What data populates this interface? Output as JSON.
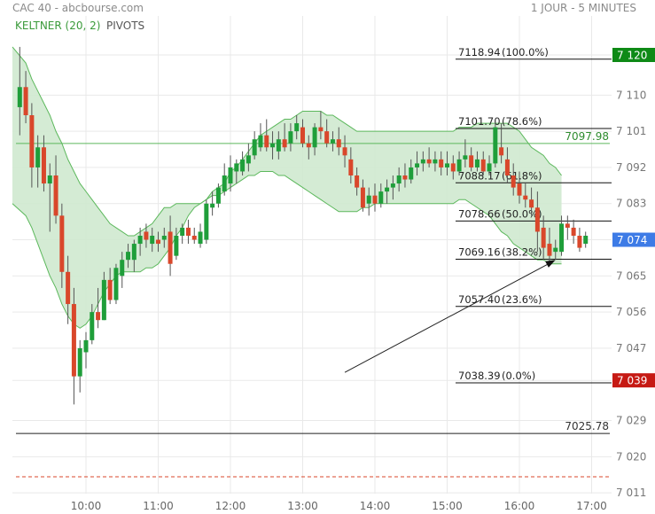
{
  "header": {
    "title": "CAC 40 - abcbourse.com",
    "period": "1 JOUR - 5 MINUTES"
  },
  "legend": {
    "keltner": "KELTNER (20, 2)",
    "pivots": "PIVOTS"
  },
  "colors": {
    "up": "#1f9e3a",
    "down": "#d9472b",
    "band_fill": "#cfe9cf",
    "band_line": "#5cb85c",
    "grid": "#e9e9e9",
    "label_green": "#0e8a16",
    "label_blue": "#3d7be6",
    "label_red": "#c61a14"
  },
  "chart_data": {
    "type": "candlestick",
    "title": "CAC 40",
    "x_ticks": [
      "10:00",
      "11:00",
      "12:00",
      "13:00",
      "14:00",
      "15:00",
      "16:00",
      "17:00"
    ],
    "y_ticks": [
      "7 120",
      "7 110",
      "7 101",
      "7 092",
      "7 083",
      "7 074",
      "7 065",
      "7 056",
      "7 047",
      "7 039",
      "7 029",
      "7 020",
      "7 011"
    ],
    "ylim": [
      7009,
      7125
    ],
    "price_labels": [
      {
        "text": "7 120",
        "value": 7120,
        "color": "#0e8a16"
      },
      {
        "text": "7 074",
        "value": 7074,
        "color": "#3d7be6"
      },
      {
        "text": "7 039",
        "value": 7039,
        "color": "#c61a14"
      }
    ],
    "fibonacci": [
      {
        "label": "7118.94",
        "pct": "(100.0%)",
        "value": 7118.94
      },
      {
        "label": "7101.70",
        "pct": "(78.6%)",
        "value": 7101.7
      },
      {
        "label": "7088.17",
        "pct": "(61.8%)",
        "value": 7088.17
      },
      {
        "label": "7078.66",
        "pct": "(50.0%)",
        "value": 7078.66
      },
      {
        "label": "7069.16",
        "pct": "(38.2%)",
        "value": 7069.16
      },
      {
        "label": "7057.40",
        "pct": "(23.6%)",
        "value": 7057.4
      },
      {
        "label": "7038.39",
        "pct": "(0.0%)",
        "value": 7038.39
      }
    ],
    "levels": [
      {
        "label": "7097.98",
        "value": 7097.98,
        "color": "#5cb85c"
      },
      {
        "label": "7025.78",
        "value": 7025.78,
        "color": "#222222"
      },
      {
        "label": "",
        "value": 7015,
        "color": "#d9472b",
        "style": "dashed"
      }
    ],
    "candles": [
      {
        "t": "09:05",
        "o": 7107,
        "h": 7122,
        "l": 7100,
        "c": 7112
      },
      {
        "t": "09:10",
        "o": 7112,
        "h": 7116,
        "l": 7103,
        "c": 7105
      },
      {
        "t": "09:15",
        "o": 7105,
        "h": 7108,
        "l": 7087,
        "c": 7092
      },
      {
        "t": "09:20",
        "o": 7092,
        "h": 7100,
        "l": 7087,
        "c": 7097
      },
      {
        "t": "09:25",
        "o": 7097,
        "h": 7100,
        "l": 7086,
        "c": 7088
      },
      {
        "t": "09:30",
        "o": 7088,
        "h": 7093,
        "l": 7076,
        "c": 7090
      },
      {
        "t": "09:35",
        "o": 7090,
        "h": 7095,
        "l": 7078,
        "c": 7080
      },
      {
        "t": "09:40",
        "o": 7080,
        "h": 7083,
        "l": 7062,
        "c": 7066
      },
      {
        "t": "09:45",
        "o": 7066,
        "h": 7070,
        "l": 7053,
        "c": 7058
      },
      {
        "t": "09:50",
        "o": 7058,
        "h": 7062,
        "l": 7033,
        "c": 7040
      },
      {
        "t": "09:55",
        "o": 7040,
        "h": 7049,
        "l": 7036,
        "c": 7047
      },
      {
        "t": "10:00",
        "o": 7046,
        "h": 7051,
        "l": 7042,
        "c": 7049
      },
      {
        "t": "10:05",
        "o": 7049,
        "h": 7058,
        "l": 7048,
        "c": 7056
      },
      {
        "t": "10:10",
        "o": 7056,
        "h": 7062,
        "l": 7052,
        "c": 7054
      },
      {
        "t": "10:15",
        "o": 7054,
        "h": 7066,
        "l": 7054,
        "c": 7064
      },
      {
        "t": "10:20",
        "o": 7064,
        "h": 7067,
        "l": 7058,
        "c": 7059
      },
      {
        "t": "10:25",
        "o": 7059,
        "h": 7068,
        "l": 7058,
        "c": 7067
      },
      {
        "t": "10:30",
        "o": 7065,
        "h": 7071,
        "l": 7062,
        "c": 7069
      },
      {
        "t": "10:35",
        "o": 7069,
        "h": 7073,
        "l": 7067,
        "c": 7071
      },
      {
        "t": "10:40",
        "o": 7069,
        "h": 7074,
        "l": 7066,
        "c": 7073
      },
      {
        "t": "10:45",
        "o": 7073,
        "h": 7077,
        "l": 7070,
        "c": 7075
      },
      {
        "t": "10:50",
        "o": 7076,
        "h": 7078,
        "l": 7072,
        "c": 7074
      },
      {
        "t": "10:55",
        "o": 7073,
        "h": 7077,
        "l": 7071,
        "c": 7075
      },
      {
        "t": "11:00",
        "o": 7074,
        "h": 7076,
        "l": 7071,
        "c": 7073
      },
      {
        "t": "11:05",
        "o": 7074,
        "h": 7077,
        "l": 7072,
        "c": 7075
      },
      {
        "t": "11:10",
        "o": 7076,
        "h": 7080,
        "l": 7065,
        "c": 7068
      },
      {
        "t": "11:15",
        "o": 7070,
        "h": 7077,
        "l": 7069,
        "c": 7075
      },
      {
        "t": "11:20",
        "o": 7075,
        "h": 7078,
        "l": 7073,
        "c": 7077
      },
      {
        "t": "11:25",
        "o": 7077,
        "h": 7079,
        "l": 7073,
        "c": 7075
      },
      {
        "t": "11:30",
        "o": 7075,
        "h": 7077,
        "l": 7073,
        "c": 7074
      },
      {
        "t": "11:35",
        "o": 7073,
        "h": 7078,
        "l": 7072,
        "c": 7076
      },
      {
        "t": "11:40",
        "o": 7074,
        "h": 7084,
        "l": 7073,
        "c": 7083
      },
      {
        "t": "11:45",
        "o": 7082,
        "h": 7086,
        "l": 7080,
        "c": 7083
      },
      {
        "t": "11:50",
        "o": 7083,
        "h": 7088,
        "l": 7082,
        "c": 7087
      },
      {
        "t": "11:55",
        "o": 7086,
        "h": 7093,
        "l": 7085,
        "c": 7090
      },
      {
        "t": "12:00",
        "o": 7088,
        "h": 7095,
        "l": 7086,
        "c": 7092
      },
      {
        "t": "12:05",
        "o": 7091,
        "h": 7094,
        "l": 7088,
        "c": 7093
      },
      {
        "t": "12:10",
        "o": 7091,
        "h": 7096,
        "l": 7090,
        "c": 7094
      },
      {
        "t": "12:15",
        "o": 7093,
        "h": 7098,
        "l": 7091,
        "c": 7095
      },
      {
        "t": "12:20",
        "o": 7095,
        "h": 7101,
        "l": 7094,
        "c": 7099
      },
      {
        "t": "12:25",
        "o": 7097,
        "h": 7103,
        "l": 7096,
        "c": 7100
      },
      {
        "t": "12:30",
        "o": 7100,
        "h": 7104,
        "l": 7096,
        "c": 7097
      },
      {
        "t": "12:35",
        "o": 7097,
        "h": 7101,
        "l": 7094,
        "c": 7098
      },
      {
        "t": "12:40",
        "o": 7096,
        "h": 7101,
        "l": 7094,
        "c": 7099
      },
      {
        "t": "12:45",
        "o": 7099,
        "h": 7103,
        "l": 7096,
        "c": 7097
      },
      {
        "t": "12:50",
        "o": 7098,
        "h": 7103,
        "l": 7096,
        "c": 7101
      },
      {
        "t": "12:55",
        "o": 7101,
        "h": 7105,
        "l": 7099,
        "c": 7103
      },
      {
        "t": "13:00",
        "o": 7102,
        "h": 7104,
        "l": 7097,
        "c": 7098
      },
      {
        "t": "13:05",
        "o": 7098,
        "h": 7100,
        "l": 7094,
        "c": 7097
      },
      {
        "t": "13:10",
        "o": 7097,
        "h": 7103,
        "l": 7095,
        "c": 7102
      },
      {
        "t": "13:15",
        "o": 7102,
        "h": 7106,
        "l": 7099,
        "c": 7101
      },
      {
        "t": "13:20",
        "o": 7101,
        "h": 7104,
        "l": 7097,
        "c": 7098
      },
      {
        "t": "13:25",
        "o": 7098,
        "h": 7101,
        "l": 7096,
        "c": 7099
      },
      {
        "t": "13:30",
        "o": 7099,
        "h": 7102,
        "l": 7095,
        "c": 7097
      },
      {
        "t": "13:35",
        "o": 7097,
        "h": 7100,
        "l": 7092,
        "c": 7095
      },
      {
        "t": "13:40",
        "o": 7094,
        "h": 7097,
        "l": 7088,
        "c": 7090
      },
      {
        "t": "13:45",
        "o": 7090,
        "h": 7092,
        "l": 7085,
        "c": 7087
      },
      {
        "t": "13:50",
        "o": 7087,
        "h": 7089,
        "l": 7081,
        "c": 7082
      },
      {
        "t": "13:55",
        "o": 7083,
        "h": 7087,
        "l": 7080,
        "c": 7085
      },
      {
        "t": "14:00",
        "o": 7085,
        "h": 7088,
        "l": 7081,
        "c": 7083
      },
      {
        "t": "14:05",
        "o": 7083,
        "h": 7088,
        "l": 7082,
        "c": 7086
      },
      {
        "t": "14:10",
        "o": 7086,
        "h": 7089,
        "l": 7083,
        "c": 7087
      },
      {
        "t": "14:15",
        "o": 7087,
        "h": 7090,
        "l": 7084,
        "c": 7088
      },
      {
        "t": "14:20",
        "o": 7088,
        "h": 7092,
        "l": 7086,
        "c": 7090
      },
      {
        "t": "14:25",
        "o": 7090,
        "h": 7093,
        "l": 7087,
        "c": 7089
      },
      {
        "t": "14:30",
        "o": 7089,
        "h": 7094,
        "l": 7088,
        "c": 7092
      },
      {
        "t": "14:35",
        "o": 7092,
        "h": 7096,
        "l": 7090,
        "c": 7093
      },
      {
        "t": "14:40",
        "o": 7093,
        "h": 7096,
        "l": 7091,
        "c": 7094
      },
      {
        "t": "14:45",
        "o": 7094,
        "h": 7097,
        "l": 7092,
        "c": 7093
      },
      {
        "t": "14:50",
        "o": 7093,
        "h": 7096,
        "l": 7091,
        "c": 7094
      },
      {
        "t": "14:55",
        "o": 7094,
        "h": 7096,
        "l": 7090,
        "c": 7092
      },
      {
        "t": "15:00",
        "o": 7092,
        "h": 7096,
        "l": 7090,
        "c": 7093
      },
      {
        "t": "15:05",
        "o": 7093,
        "h": 7095,
        "l": 7089,
        "c": 7091
      },
      {
        "t": "15:10",
        "o": 7091,
        "h": 7096,
        "l": 7090,
        "c": 7094
      },
      {
        "t": "15:15",
        "o": 7094,
        "h": 7099,
        "l": 7092,
        "c": 7095
      },
      {
        "t": "15:20",
        "o": 7095,
        "h": 7097,
        "l": 7091,
        "c": 7092
      },
      {
        "t": "15:25",
        "o": 7092,
        "h": 7096,
        "l": 7091,
        "c": 7094
      },
      {
        "t": "15:30",
        "o": 7094,
        "h": 7096,
        "l": 7090,
        "c": 7091
      },
      {
        "t": "15:35",
        "o": 7091,
        "h": 7095,
        "l": 7090,
        "c": 7093
      },
      {
        "t": "15:40",
        "o": 7093,
        "h": 7104,
        "l": 7092,
        "c": 7102
      },
      {
        "t": "15:45",
        "o": 7097,
        "h": 7103,
        "l": 7093,
        "c": 7095
      },
      {
        "t": "15:50",
        "o": 7094,
        "h": 7097,
        "l": 7088,
        "c": 7090
      },
      {
        "t": "15:55",
        "o": 7090,
        "h": 7093,
        "l": 7085,
        "c": 7087
      },
      {
        "t": "16:00",
        "o": 7088,
        "h": 7091,
        "l": 7083,
        "c": 7085
      },
      {
        "t": "16:05",
        "o": 7085,
        "h": 7088,
        "l": 7082,
        "c": 7084
      },
      {
        "t": "16:10",
        "o": 7084,
        "h": 7087,
        "l": 7080,
        "c": 7082
      },
      {
        "t": "16:15",
        "o": 7082,
        "h": 7086,
        "l": 7071,
        "c": 7076
      },
      {
        "t": "16:20",
        "o": 7077,
        "h": 7080,
        "l": 7069,
        "c": 7072
      },
      {
        "t": "16:25",
        "o": 7073,
        "h": 7077,
        "l": 7068,
        "c": 7070
      },
      {
        "t": "16:30",
        "o": 7071,
        "h": 7074,
        "l": 7069,
        "c": 7072
      },
      {
        "t": "16:35",
        "o": 7071,
        "h": 7080,
        "l": 7070,
        "c": 7078
      },
      {
        "t": "16:40",
        "o": 7078,
        "h": 7080,
        "l": 7074,
        "c": 7077
      },
      {
        "t": "16:45",
        "o": 7077,
        "h": 7079,
        "l": 7073,
        "c": 7075
      },
      {
        "t": "16:50",
        "o": 7075,
        "h": 7077,
        "l": 7071,
        "c": 7072
      },
      {
        "t": "16:55",
        "o": 7073,
        "h": 7076,
        "l": 7072,
        "c": 7075
      }
    ],
    "keltner_upper": [
      7122,
      7118,
      7114,
      7111,
      7108,
      7105,
      7101,
      7098,
      7094,
      7091,
      7088,
      7086,
      7084,
      7082,
      7080,
      7078,
      7077,
      7076,
      7075,
      7075,
      7076,
      7077,
      7078,
      7080,
      7082,
      7082,
      7083,
      7083,
      7083,
      7083,
      7083,
      7084,
      7086,
      7087,
      7088,
      7091,
      7092,
      7094,
      7096,
      7098,
      7100,
      7101,
      7102,
      7103,
      7104,
      7104,
      7105,
      7106,
      7106,
      7106,
      7106,
      7105,
      7105,
      7104,
      7103,
      7102,
      7101,
      7101,
      7101,
      7101,
      7101,
      7101,
      7101,
      7101,
      7101,
      7101,
      7101,
      7101,
      7101,
      7101,
      7101,
      7101,
      7101,
      7102,
      7102,
      7102,
      7103,
      7103,
      7103,
      7103,
      7103,
      7103,
      7102,
      7101,
      7099,
      7097,
      7096,
      7095,
      7093,
      7092,
      7090
    ],
    "keltner_lower": [
      7083,
      7080,
      7077,
      7073,
      7069,
      7065,
      7062,
      7058,
      7055,
      7053,
      7052,
      7053,
      7055,
      7058,
      7061,
      7063,
      7065,
      7066,
      7066,
      7066,
      7066,
      7067,
      7067,
      7068,
      7070,
      7072,
      7075,
      7077,
      7080,
      7082,
      7083,
      7084,
      7085,
      7085,
      7086,
      7087,
      7088,
      7089,
      7090,
      7090,
      7091,
      7091,
      7091,
      7090,
      7090,
      7089,
      7088,
      7087,
      7086,
      7085,
      7084,
      7083,
      7082,
      7081,
      7081,
      7081,
      7081,
      7082,
      7082,
      7083,
      7083,
      7083,
      7083,
      7083,
      7083,
      7083,
      7083,
      7083,
      7083,
      7083,
      7083,
      7083,
      7083,
      7084,
      7084,
      7083,
      7082,
      7081,
      7080,
      7078,
      7076,
      7075,
      7073,
      7072,
      7071,
      7070,
      7069,
      7069,
      7068,
      7068,
      7068
    ],
    "arrow": {
      "from": {
        "t": "13:35",
        "v": 7041
      },
      "to": {
        "t": "16:30",
        "v": 7069
      }
    }
  }
}
